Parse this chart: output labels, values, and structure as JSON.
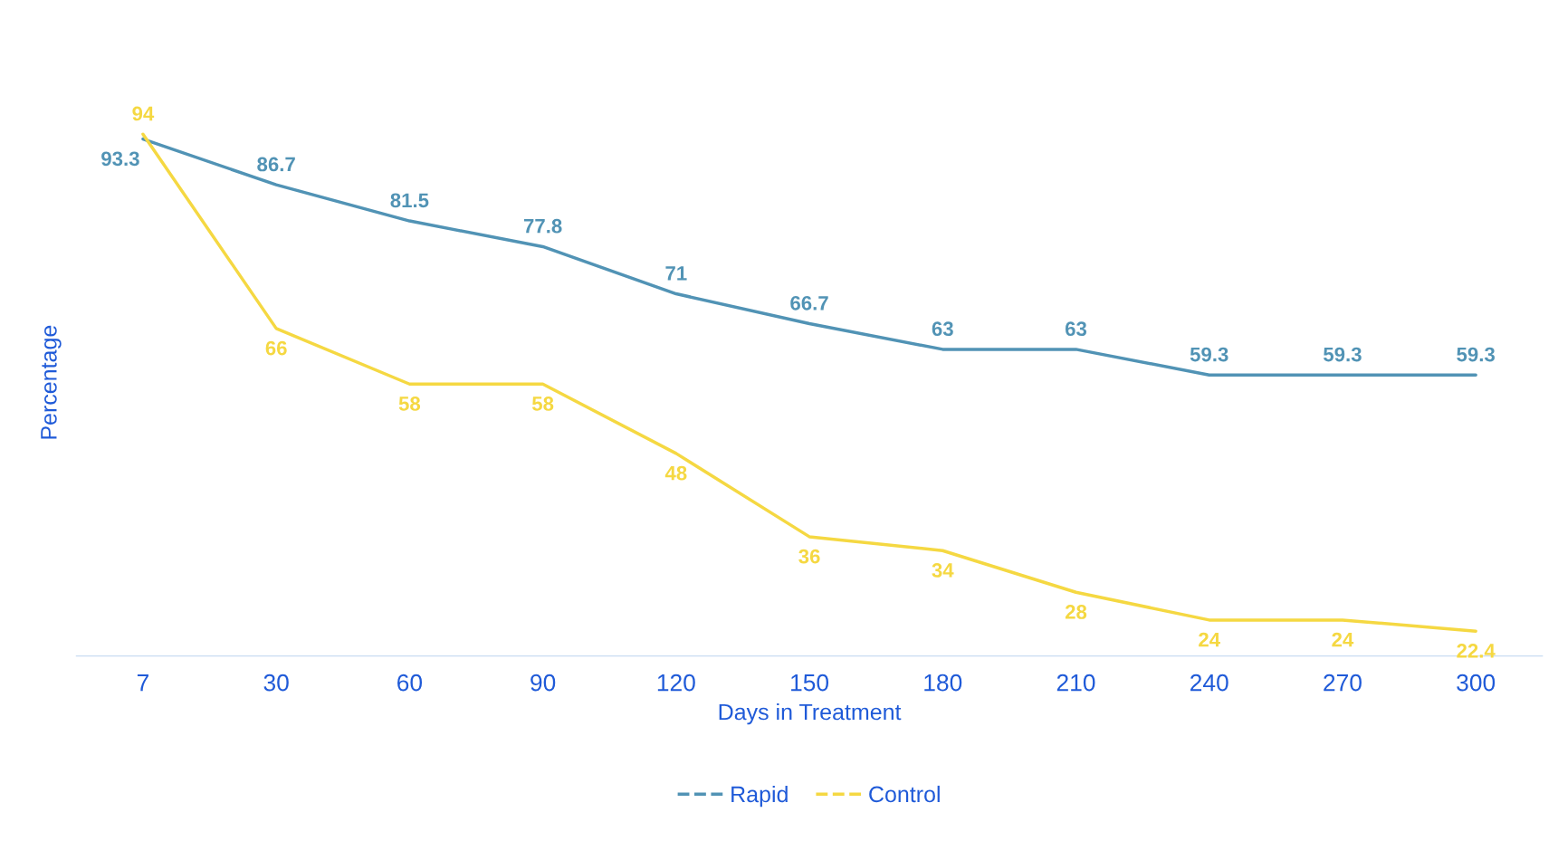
{
  "chart_data": {
    "type": "line",
    "xlabel": "Days in Treatment",
    "ylabel": "Percentage",
    "categories": [
      "7",
      "30",
      "60",
      "90",
      "120",
      "150",
      "180",
      "210",
      "240",
      "270",
      "300"
    ],
    "series": [
      {
        "name": "Rapid",
        "color": "#5193b5",
        "values": [
          93.3,
          86.7,
          81.5,
          77.8,
          71,
          66.7,
          63,
          63,
          59.3,
          59.3,
          59.3
        ]
      },
      {
        "name": "Control",
        "color": "#f5d842",
        "values": [
          94,
          66,
          58,
          58,
          48,
          36,
          34,
          28,
          24,
          24,
          22.4
        ]
      }
    ],
    "data_labels": true,
    "legend": "bottom",
    "grid": false,
    "line_style": "solid"
  }
}
